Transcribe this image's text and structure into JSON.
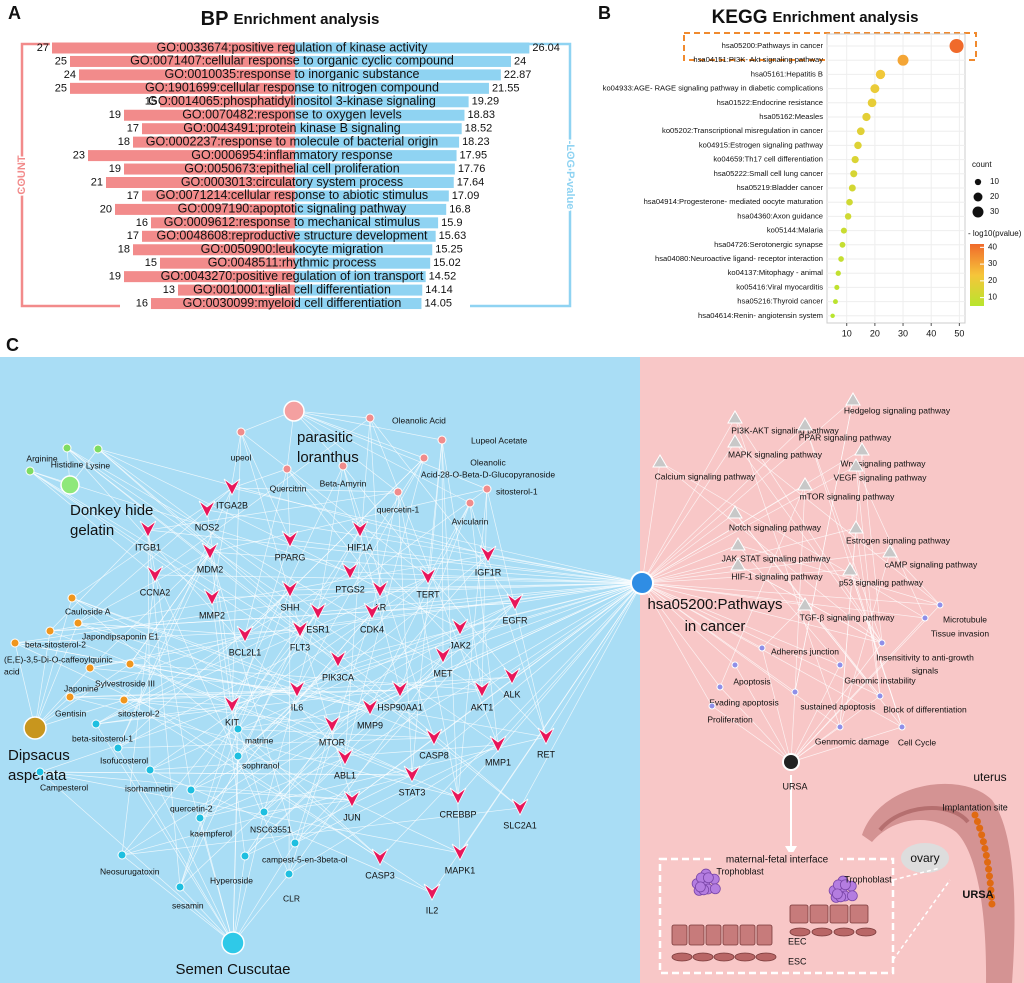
{
  "chart_data": [
    {
      "type": "bidirectional-bar",
      "panel": "A",
      "title": {
        "bold": "BP",
        "rest": "Enrichment analysis"
      },
      "categories": [
        "GO:0033674:positive regulation of kinase activity",
        "GO:0071407:cellular response to organic cyclic compound",
        "GO:0010035:response to inorganic substance",
        "GO:1901699:cellular response to nitrogen compound",
        "GO:0014065:phosphatidylinositol 3-kinase signaling",
        "GO:0070482:response to oxygen levels",
        "GO:0043491:protein kinase B signaling",
        "GO:0002237:response to molecule of bacterial origin",
        "GO:0006954:inflammatory response",
        "GO:0050673:epithelial cell proliferation",
        "GO:0003013:circulatory system process",
        "GO:0071214:cellular response to abiotic stimulus",
        "GO:0097190:apoptotic signaling pathway",
        "GO:0009612:response to mechanical stimulus",
        "GO:0048608:reproductive structure development",
        "GO:0050900:leukocyte migration",
        "GO:0048511:rhythmic process",
        "GO:0043270:positive regulation of ion transport",
        "GO:0010001:glial cell differentiation",
        "GO:0030099:myeloid cell differentiation"
      ],
      "series": [
        {
          "name": "COUNT",
          "color": "#f28b8b",
          "xlim": [
            0,
            30
          ],
          "values": [
            27,
            25,
            24,
            25,
            15,
            19,
            17,
            18,
            23,
            19,
            21,
            17,
            20,
            16,
            17,
            18,
            15,
            19,
            13,
            16
          ]
        },
        {
          "name": "-LOG P value",
          "color": "#8fd3f2",
          "xlim": [
            0,
            30
          ],
          "values": [
            26.04,
            24,
            22.87,
            21.55,
            19.29,
            18.83,
            18.52,
            18.23,
            17.95,
            17.76,
            17.64,
            17.09,
            16.8,
            15.9,
            15.63,
            15.25,
            15.02,
            14.52,
            14.14,
            14.05
          ]
        }
      ]
    },
    {
      "type": "dot",
      "panel": "B",
      "title": {
        "bold": "KEGG",
        "rest": "Enrichment analysis"
      },
      "categories": [
        "hsa05200:Pathways in cancer",
        "hsa04151:PI3K- Akt signaling pathway",
        "hsa05161:Hepatitis B",
        "ko04933:AGE- RAGE signaling pathway in diabetic complications",
        "hsa01522:Endocrine resistance",
        "hsa05162:Measles",
        "ko05202:Transcriptional misregulation in cancer",
        "ko04915:Estrogen signaling pathway",
        "ko04659:Th17 cell differentiation",
        "hsa05222:Small cell lung cancer",
        "hsa05219:Bladder cancer",
        "hsa04914:Progesterone- mediated oocyte maturation",
        "hsa04360:Axon guidance",
        "ko05144:Malaria",
        "hsa04726:Serotonergic synapse",
        "hsa04080:Neuroactive ligand- receptor interaction",
        "ko04137:Mitophagy - animal",
        "ko05416:Viral myocarditis",
        "hsa05216:Thyroid cancer",
        "hsa04614:Renin- angiotensin system"
      ],
      "values": [
        49,
        30,
        22,
        20,
        19,
        17,
        15,
        14,
        13,
        12.5,
        12,
        11,
        10.5,
        9,
        8.5,
        8,
        7,
        6.5,
        6,
        5
      ],
      "sizes": [
        49,
        30,
        22,
        20,
        19,
        17,
        15,
        14,
        13,
        12.5,
        12,
        11,
        10.5,
        9,
        8.5,
        8,
        7,
        6.5,
        6,
        5
      ],
      "colors": [
        42,
        30,
        22,
        20,
        19,
        18,
        17,
        16,
        15,
        14,
        13,
        12,
        12,
        10,
        9,
        9,
        8,
        7,
        6,
        5
      ],
      "xlim": [
        3,
        52
      ],
      "xticks": [
        10,
        20,
        30,
        40,
        50
      ],
      "grid": true,
      "size_legend": {
        "title": "count",
        "values": [
          10,
          20,
          30
        ]
      },
      "color_legend": {
        "title": "- log10(pvalue)",
        "lim": [
          5,
          42
        ],
        "ticks": [
          10,
          20,
          30,
          40
        ],
        "colors": [
          "#b8e52e",
          "#f6c53a",
          "#f06a2b"
        ]
      }
    }
  ],
  "network": {
    "panel": "C",
    "herbs": [
      {
        "label": [
          "parasitic",
          "loranthus"
        ],
        "color": "#f4a0a0",
        "compound_color": "#f08c8c",
        "compounds": [
          "upeol",
          "Oleanolic Acid",
          "Lupeol Acetate",
          [
            "Oleanolic",
            "Acid-28-O-Beta-D-Glucopyranoside"
          ],
          "Quercitrin",
          "Beta-Amyrin",
          "quercetin-1",
          "sitosterol-1",
          "Avicularin"
        ]
      },
      {
        "label": [
          "Donkey hide",
          "gelatin"
        ],
        "color": "#8fe87a",
        "compound_color": "#7fdc62",
        "compounds": [
          "Histidine",
          "Arginine",
          "Lysine"
        ]
      },
      {
        "label": [
          "Dipsacus",
          "asperata"
        ],
        "color": "#c8961e",
        "compound_color": "#f0961e",
        "compounds": [
          "Cauloside A",
          "beta-sitosterol-2",
          "Japondipsaponin E1",
          [
            "(E,E)-3,5-Di-O-caffeoylquinic",
            "acid"
          ],
          "Japonine",
          "Sylvestroside III",
          "Gentisin",
          "sitosterol-2"
        ]
      },
      {
        "label": "Semen Cuscutae",
        "color": "#2fc9e8",
        "compound_color": "#1fbfe0",
        "compounds": [
          "beta-sitosterol-1",
          "Isofucosterol",
          "Campesterol",
          "isorhamnetin",
          "matrine",
          "sophranol",
          "quercetin-2",
          "kaempferol",
          "NSC63551",
          "Neosurugatoxin",
          "Hyperoside",
          "campest-5-en-3beta-ol",
          "sesamin",
          "CLR"
        ]
      }
    ],
    "targets": [
      "NOS2",
      "ITGA2B",
      "ITGB1",
      "MDM2",
      "PPARG",
      "HIF1A",
      "IGF1R",
      "CCNA2",
      "MMP2",
      "SHH",
      "PTGS2",
      "TERT",
      "AR",
      "EGFR",
      "ESR1",
      "CDK4",
      "JAK2",
      "BCL2L1",
      "FLT3",
      "PIK3CA",
      "MET",
      "ALK",
      "IL6",
      "HSP90AA1",
      "AKT1",
      "KIT",
      "MMP9",
      "MTOR",
      "CASP8",
      "MMP1",
      "RET",
      "ABL1",
      "STAT3",
      "CREBBP",
      "SLC2A1",
      "JUN",
      "CASP3",
      "MAPK1",
      "IL2"
    ],
    "hub": [
      "hsa05200:Pathways",
      "in cancer"
    ],
    "pathways": [
      "PI3K-AKT signaling pathway",
      "Hedgelog signaling pathway",
      "PPAR signaling pathway",
      "MAPK signaling pathway",
      "Calcium signaling pathway",
      "Wnt signaling pathway",
      "VEGF signaling pathway",
      "mTOR signaling pathway",
      "Notch signaling pathway",
      "Estrogen signaling pathway",
      "JAK-STAT signaling pathway",
      "cAMP signaling pathway",
      "HIF-1 signaling pathway",
      "p53 signaling pathway",
      "TGF-β signaling pathway"
    ],
    "processes": [
      "Microtubule",
      "Tissue invasion",
      [
        "Insensitivity to anti-growth",
        "signals"
      ],
      "Adherens junction",
      "Genomic instability",
      "Apoptosis",
      "Evading apoptosis",
      "sustained apoptosis",
      "Block of differentiation",
      "Proliferation",
      "Cell Cycle",
      "Genmomic damage"
    ],
    "disease": "URSA",
    "illustration": {
      "uterus": "uterus",
      "implantation": "Implantation site",
      "ovary": "ovary",
      "disease": "URSA",
      "interface": "maternal-fetal interface",
      "trophoblast": [
        "Trophoblast",
        "Trophoblast"
      ],
      "eec": "EEC",
      "esc": "ESC"
    }
  }
}
